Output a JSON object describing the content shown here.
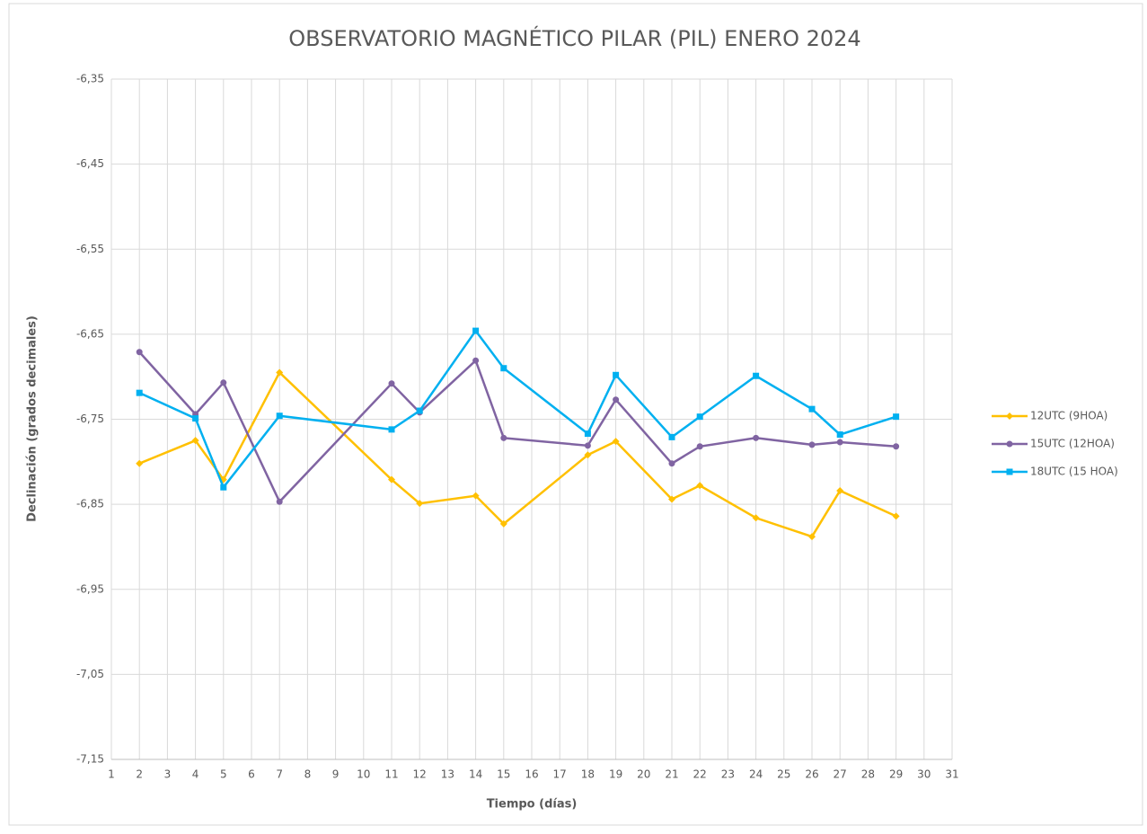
{
  "chart_data": {
    "type": "line",
    "title": "OBSERVATORIO MAGNÉTICO PILAR (PIL) ENERO 2024",
    "x_label": "Tiempo (días)",
    "y_label": "Declinación (grados decimales)",
    "x": [
      2,
      4,
      5,
      7,
      11,
      12,
      14,
      15,
      18,
      19,
      21,
      22,
      24,
      26,
      27,
      29
    ],
    "series": [
      {
        "name": "12UTC (9HOA)",
        "color": "#ffc000",
        "marker": "diamond",
        "values": [
          -6.802,
          -6.775,
          -6.821,
          -6.695,
          -6.821,
          -6.849,
          -6.84,
          -6.873,
          -6.792,
          -6.776,
          -6.844,
          -6.828,
          -6.866,
          -6.888,
          -6.834,
          -6.864
        ]
      },
      {
        "name": "15UTC (12HOA)",
        "color": "#8064a2",
        "marker": "circle",
        "values": [
          -6.671,
          -6.744,
          -6.707,
          -6.847,
          -6.708,
          -6.742,
          -6.681,
          -6.772,
          -6.781,
          -6.727,
          -6.802,
          -6.782,
          -6.772,
          -6.78,
          -6.777,
          -6.782
        ]
      },
      {
        "name": "18UTC (15 HOA)",
        "color": "#00b0f0",
        "marker": "square",
        "values": [
          -6.719,
          -6.749,
          -6.83,
          -6.746,
          -6.762,
          -6.74,
          -6.646,
          -6.69,
          -6.767,
          -6.698,
          -6.771,
          -6.747,
          -6.699,
          -6.738,
          -6.768,
          -6.747
        ]
      }
    ],
    "xlim": [
      1,
      31
    ],
    "xticks": [
      1,
      2,
      3,
      4,
      5,
      6,
      7,
      8,
      9,
      10,
      11,
      12,
      13,
      14,
      15,
      16,
      17,
      18,
      19,
      20,
      21,
      22,
      23,
      24,
      25,
      26,
      27,
      28,
      29,
      30,
      31
    ],
    "ylim": [
      -7.15,
      -6.35
    ],
    "yticks": [
      {
        "value": -7.15,
        "label": "-7,15"
      },
      {
        "value": -7.05,
        "label": "-7,05"
      },
      {
        "value": -6.95,
        "label": "-6,95"
      },
      {
        "value": -6.85,
        "label": "-6,85"
      },
      {
        "value": -6.75,
        "label": "-6,75"
      },
      {
        "value": -6.65,
        "label": "-6,65"
      },
      {
        "value": -6.55,
        "label": "-6,55"
      },
      {
        "value": -6.45,
        "label": "-6,45"
      },
      {
        "value": -6.35,
        "label": "-6,35"
      }
    ],
    "grid": true,
    "legend": "right"
  }
}
